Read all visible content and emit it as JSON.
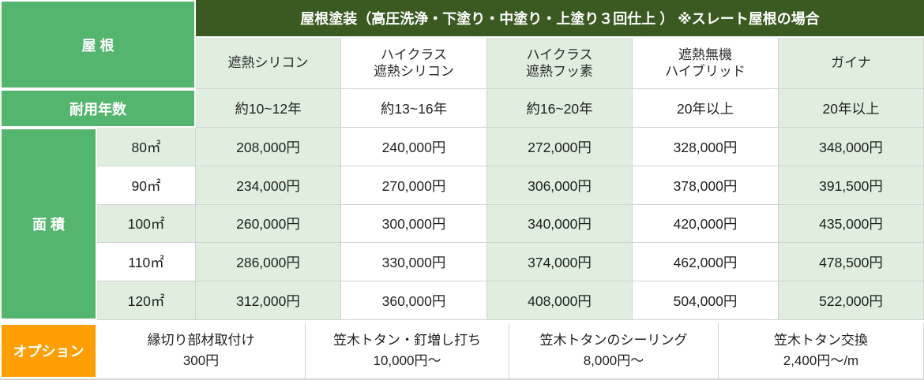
{
  "colors": {
    "green": "#54b56f",
    "dark_green": "#3a5a22",
    "light_green": "#dfeedf",
    "orange": "#fc9e04",
    "border": "#d2d2d2"
  },
  "chart_data": {
    "type": "table",
    "title": "屋根塗装（高圧洗浄・下塗り・中塗り・上塗り３回仕上 ） ※スレート屋根の場合",
    "corner_label": "屋 根",
    "columns": [
      "遮熱シリコン",
      "ハイクラス\n遮熱シリコン",
      "ハイクラス\n遮熱フッ素",
      "遮熱無機\nハイブリッド",
      "ガイナ"
    ],
    "durability": {
      "label": "耐用年数",
      "values": [
        "約10~12年",
        "約13~16年",
        "約16~20年",
        "20年以上",
        "20年以上"
      ]
    },
    "area": {
      "label": "面 積",
      "rows": [
        {
          "size": "80㎡",
          "prices": [
            "208,000円",
            "240,000円",
            "272,000円",
            "328,000円",
            "348,000円"
          ]
        },
        {
          "size": "90㎡",
          "prices": [
            "234,000円",
            "270,000円",
            "306,000円",
            "378,000円",
            "391,500円"
          ]
        },
        {
          "size": "100㎡",
          "prices": [
            "260,000円",
            "300,000円",
            "340,000円",
            "420,000円",
            "435,000円"
          ]
        },
        {
          "size": "110㎡",
          "prices": [
            "286,000円",
            "330,000円",
            "374,000円",
            "462,000円",
            "478,500円"
          ]
        },
        {
          "size": "120㎡",
          "prices": [
            "312,000円",
            "360,000円",
            "408,000円",
            "504,000円",
            "522,000円"
          ]
        }
      ]
    },
    "options": {
      "label": "オプション",
      "items": [
        {
          "name": "縁切り部材取付け",
          "price": "300円"
        },
        {
          "name": "笠木トタン・釘増し打ち",
          "price": "10,000円～"
        },
        {
          "name": "笠木トタンのシーリング",
          "price": "8,000円～"
        },
        {
          "name": "笠木トタン交換",
          "price": "2,400円～/m"
        }
      ]
    }
  }
}
